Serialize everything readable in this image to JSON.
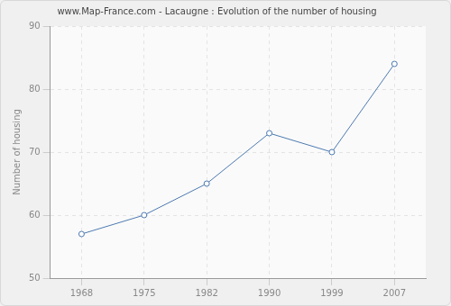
{
  "chart_data": {
    "type": "line",
    "title": "www.Map-France.com - Lacaugne : Evolution of the number of housing",
    "y_label": "Number of housing",
    "categories": [
      "1968",
      "1975",
      "1982",
      "1990",
      "1999",
      "2007"
    ],
    "values": [
      57,
      60,
      65,
      73,
      70,
      84
    ],
    "color": "#4e7ab1",
    "marker": "circle",
    "line_style": "solid",
    "ylim": [
      50,
      90
    ],
    "yticks": [
      50,
      60,
      70,
      80,
      90
    ],
    "grid": true
  }
}
